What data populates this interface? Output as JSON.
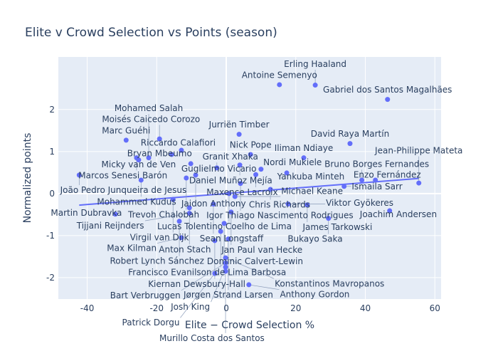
{
  "chart_data": {
    "type": "scatter",
    "title": "Elite v Crowd Selection vs Points (season)",
    "xlabel": "Elite − Crowd Selection %",
    "ylabel": "Normalized points",
    "xlim": [
      -48.3,
      61.8
    ],
    "ylim": [
      -2.51,
      3.25
    ],
    "xticks": [
      -40,
      -20,
      0,
      20,
      40,
      60
    ],
    "yticks": [
      -2,
      -1,
      0,
      1,
      2
    ],
    "grid": true,
    "marker_color": "#636efa",
    "background_color": "#e5ecf6",
    "trendline": {
      "slope": 0.0065,
      "intercept": 0.0,
      "x_range": [
        -42.3,
        55.4
      ]
    },
    "points": [
      {
        "name": "Antoine Semenyo",
        "x": 15.3,
        "y": 2.59
      },
      {
        "name": "Erling Haaland",
        "x": 25.6,
        "y": 2.58
      },
      {
        "name": "Gabriel dos Santos Magalhães",
        "x": 46.4,
        "y": 2.24
      },
      {
        "name": "Jurriën Timber",
        "x": 3.7,
        "y": 1.41
      },
      {
        "name": "David Raya Martín",
        "x": 35.6,
        "y": 1.19
      },
      {
        "name": "Nick Pope",
        "x": 7.0,
        "y": 0.93
      },
      {
        "name": "Iliman Ndiaye",
        "x": 22.3,
        "y": 0.85
      },
      {
        "name": "Marc Guéhi",
        "x": -28.8,
        "y": 1.27
      },
      {
        "name": "Moisés Caicedo Corozo",
        "x": -19.2,
        "y": 1.3
      },
      {
        "name": "Riccardo Calafiori",
        "x": -12.9,
        "y": 1.03
      },
      {
        "name": "Bryan Mbeumo",
        "x": -15.7,
        "y": 0.93
      },
      {
        "name": "Micky van de Ven",
        "x": -25.2,
        "y": 0.8
      },
      {
        "name": "Marcos Senesi Barón",
        "x": -25.8,
        "y": 0.85
      },
      {
        "name": "Mohamed Salah",
        "x": -22.3,
        "y": 0.85
      },
      {
        "name": "João Pedro Junqueira de Jesus",
        "x": -42.3,
        "y": 0.44
      },
      {
        "name": "Mohammed Kudus",
        "x": -24.5,
        "y": 0.32
      },
      {
        "name": "Guglielmo Vicario",
        "x": -10.2,
        "y": 0.71
      },
      {
        "name": "Granit Xhaka",
        "x": -2.7,
        "y": 0.61
      },
      {
        "name": "Daniel Muñoz Mejía",
        "x": 3.9,
        "y": 0.68
      },
      {
        "name": "Nordi Mukiele",
        "x": 10.0,
        "y": 0.58
      },
      {
        "name": "Maxence Lacroix",
        "x": 8.5,
        "y": 0.45
      },
      {
        "name": "Yankuba Minteh",
        "x": 17.4,
        "y": 0.49
      },
      {
        "name": "Jaidon Anthony",
        "x": -8.8,
        "y": 0.44
      },
      {
        "name": "Trevoh Chalobah",
        "x": -11.5,
        "y": 0.37
      },
      {
        "name": "Igor Thiago Nascimento Rodrigues",
        "x": 4.1,
        "y": 0.24
      },
      {
        "name": "Chris Richards",
        "x": 12.7,
        "y": 0.1
      },
      {
        "name": "Lucas Tolentino Coelho de Lima",
        "x": 0.8,
        "y": 0.0
      },
      {
        "name": "Michael Keane",
        "x": 2.5,
        "y": -0.07
      },
      {
        "name": "Virgil van Dijk",
        "x": -15.3,
        "y": -0.14
      },
      {
        "name": "Bruno Borges Fernandes",
        "x": 39.0,
        "y": 0.32
      },
      {
        "name": "Enzo Fernández",
        "x": 42.9,
        "y": 0.32
      },
      {
        "name": "Ismaila Sarr",
        "x": 33.9,
        "y": 0.17
      },
      {
        "name": "Jean-Philippe Mateta",
        "x": 55.4,
        "y": 0.25
      },
      {
        "name": "Viktor Gyökeres",
        "x": 17.8,
        "y": -0.25
      },
      {
        "name": "James Tarkowski",
        "x": 23.3,
        "y": -0.27
      },
      {
        "name": "Bukayo Saka",
        "x": 29.4,
        "y": -0.59
      },
      {
        "name": "Joachim Andersen",
        "x": 47.0,
        "y": -0.41
      },
      {
        "name": "Martin Dubravka",
        "x": -31.9,
        "y": -0.49
      },
      {
        "name": "Sean Longstaff",
        "x": -3.7,
        "y": -0.25
      },
      {
        "name": "Anton Stach",
        "x": -10.6,
        "y": -0.34
      },
      {
        "name": "Jan Paul van Hecke",
        "x": 1.4,
        "y": -0.44
      },
      {
        "name": "Tijjani Reijnders",
        "x": -10.6,
        "y": -0.47
      },
      {
        "name": "Robert Lynch Sánchez",
        "x": -13.5,
        "y": -0.66
      },
      {
        "name": "Dominic Calvert-Lewin",
        "x": -0.6,
        "y": -0.71
      },
      {
        "name": "Francisco Evanilson de Lima Barbosa",
        "x": -1.6,
        "y": -0.9
      },
      {
        "name": "Max Kilman",
        "x": -12.9,
        "y": -1.05
      },
      {
        "name": "Kiernan Dewsbury-Hall",
        "x": -3.3,
        "y": -1.12
      },
      {
        "name": "Jørgen Strand Larsen",
        "x": 0.6,
        "y": -1.08
      },
      {
        "name": "Konstantinos Mavropanos",
        "x": -0.2,
        "y": -1.53
      },
      {
        "name": "Bart Verbruggen",
        "x": -0.2,
        "y": -1.65
      },
      {
        "name": "Josh King",
        "x": -0.2,
        "y": -1.75
      },
      {
        "name": "Murillo Costa dos Santos",
        "x": -0.2,
        "y": -1.85
      },
      {
        "name": "Patrick Dorgu",
        "x": -3.3,
        "y": -1.9
      },
      {
        "name": "Anthony Gordon",
        "x": 6.5,
        "y": -2.17
      }
    ]
  }
}
